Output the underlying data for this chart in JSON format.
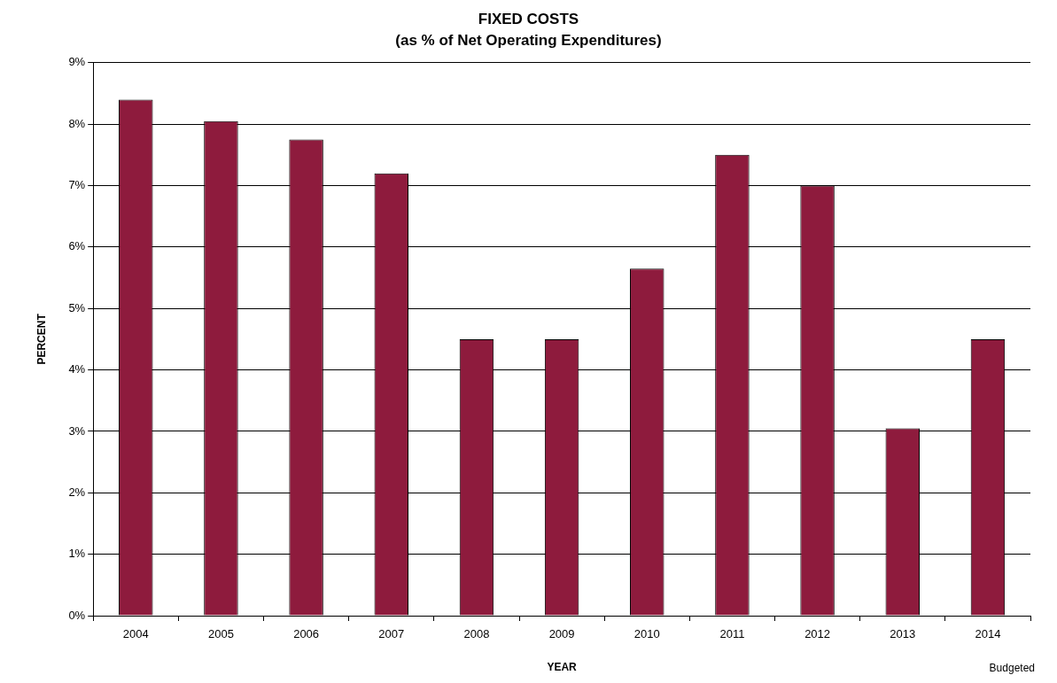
{
  "chart_data": {
    "type": "bar",
    "title": "FIXED COSTS",
    "subtitle": "(as % of Net Operating Expenditures)",
    "xlabel": "YEAR",
    "ylabel": "PERCENT",
    "categories": [
      "2004",
      "2005",
      "2006",
      "2007",
      "2008",
      "2009",
      "2010",
      "2011",
      "2012",
      "2013",
      "2014"
    ],
    "values": [
      8.4,
      8.05,
      7.75,
      7.2,
      4.5,
      4.5,
      5.65,
      7.5,
      7.0,
      3.05,
      4.5
    ],
    "color": "#8e1b3d",
    "ylim": [
      0,
      9
    ],
    "yticks": [
      {
        "value": 0,
        "label": "0%"
      },
      {
        "value": 1,
        "label": "1%"
      },
      {
        "value": 2,
        "label": "2%"
      },
      {
        "value": 3,
        "label": "3%"
      },
      {
        "value": 4,
        "label": "4%"
      },
      {
        "value": 5,
        "label": "5%"
      },
      {
        "value": 6,
        "label": "6%"
      },
      {
        "value": 7,
        "label": "7%"
      },
      {
        "value": 8,
        "label": "8%"
      },
      {
        "value": 9,
        "label": "9%"
      }
    ],
    "grid": "y",
    "legend": false,
    "annotations": [
      "Budgeted"
    ]
  }
}
